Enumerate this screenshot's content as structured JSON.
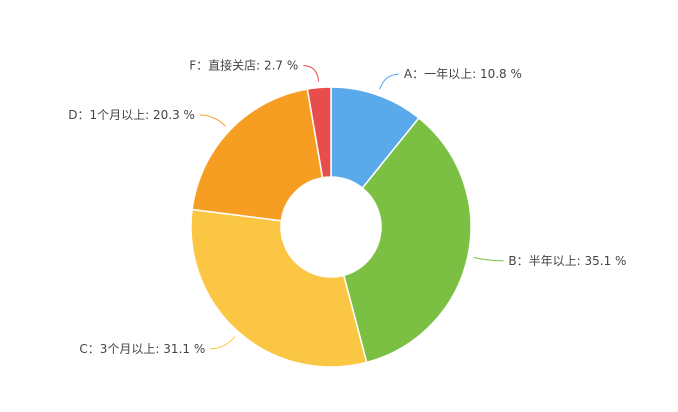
{
  "chart_data": {
    "type": "pie",
    "donut": true,
    "start_angle_deg": 90,
    "direction": "clockwise",
    "slices": [
      {
        "category": "A",
        "label": "A：一年以上: 10.8 %",
        "value": 10.8,
        "color": "#5aa9ea"
      },
      {
        "category": "B",
        "label": "B：半年以上: 35.1 %",
        "value": 35.1,
        "color": "#7bc043"
      },
      {
        "category": "C",
        "label": "C：3个月以上: 31.1 %",
        "value": 31.1,
        "color": "#fcc645"
      },
      {
        "category": "D",
        "label": "D：1个月以上: 20.3 %",
        "value": 20.3,
        "color": "#f59e22"
      },
      {
        "category": "F",
        "label": "F：直接关店: 2.7 %",
        "value": 2.7,
        "color": "#e84d4d"
      }
    ]
  }
}
